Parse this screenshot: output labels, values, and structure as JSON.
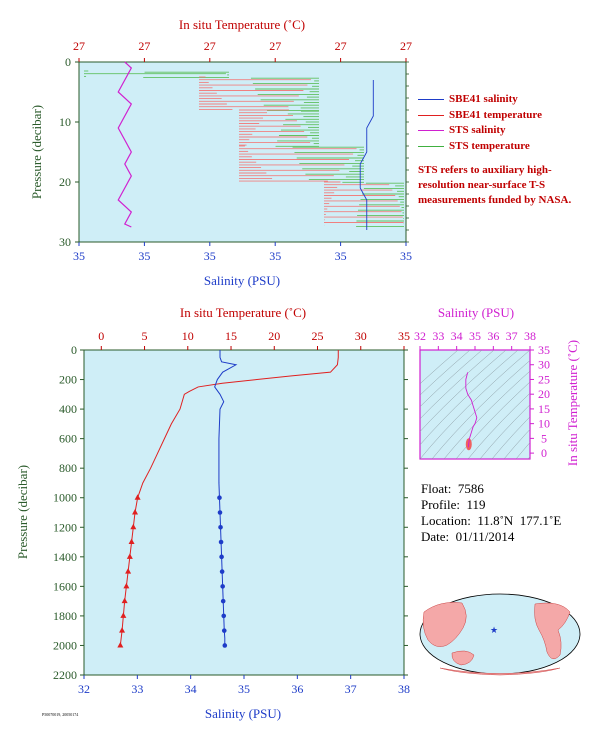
{
  "meta_caption": "P50070019, 20050174",
  "top_panel": {
    "top_axis_label": "In situ Temperature (˚C)",
    "bottom_axis_label": "Salinity (PSU)",
    "y_axis_label": "Pressure (decibar)",
    "top_ticks": [
      "27",
      "27",
      "27",
      "27",
      "27",
      "27"
    ],
    "bottom_ticks": [
      "35",
      "35",
      "35",
      "35",
      "35",
      "35"
    ],
    "y_ticks": [
      "0",
      "10",
      "20",
      "30"
    ]
  },
  "legend": {
    "items": [
      {
        "label": "SBE41 salinity",
        "color": "#1e3cc8"
      },
      {
        "label": "SBE41 temperature",
        "color": "#e02020"
      },
      {
        "label": "STS salinity",
        "color": "#d020d0"
      },
      {
        "label": "STS temperature",
        "color": "#40b040"
      }
    ],
    "note": "STS refers to auxiliary high-resolution near-surface T-S measurements funded by NASA."
  },
  "bottom_panel": {
    "top_axis_label": "In situ Temperature (˚C)",
    "bottom_axis_label": "Salinity (PSU)",
    "y_axis_label": "Pressure (decibar)"
  },
  "ts_panel": {
    "top_axis_label": "Salinity (PSU)",
    "right_axis_label": "In situ Temperature (˚C)"
  },
  "float_info": {
    "float": "Float:  7586",
    "profile": "Profile:  119",
    "location": "Location:  11.8˚N  177.1˚E",
    "date": "Date:  01/11/2014"
  },
  "colors": {
    "panel_bg": "#cfeef7",
    "temperature": "#e02020",
    "salinity": "#1e3cc8",
    "sts_salinity": "#d020d0",
    "sts_temperature": "#40b040",
    "axis_green": "#2a5a2a"
  },
  "chart_data": [
    {
      "type": "line",
      "panel": "top",
      "title": "",
      "xlabel_top": "In situ Temperature (˚C)",
      "xlabel_bottom": "Salinity (PSU)",
      "ylabel": "Pressure (decibar)",
      "ylim": [
        30,
        0
      ],
      "series": [
        {
          "name": "SBE41 salinity",
          "x": [
            35.3,
            35.3,
            35.3,
            35.3,
            35.29,
            35.29,
            35.29,
            35.28,
            35.28,
            35.28,
            35.29,
            35.29,
            35.29,
            35.29
          ],
          "y": [
            3,
            5,
            7,
            9,
            11,
            13,
            15,
            17,
            19,
            21,
            23,
            25,
            27,
            28
          ]
        },
        {
          "name": "STS salinity",
          "x": [
            34.92,
            34.93,
            34.92,
            34.91,
            34.93,
            34.92,
            34.91,
            34.92,
            34.93,
            34.92,
            34.93,
            34.92,
            34.91,
            34.93,
            34.92,
            34.93
          ],
          "y": [
            0,
            1,
            3,
            5,
            7,
            9,
            11,
            13,
            15,
            17,
            19,
            21,
            23,
            25,
            27,
            27.5
          ]
        }
      ]
    },
    {
      "type": "line",
      "panel": "bottom",
      "title": "",
      "xlabel_top": "In situ Temperature (˚C)",
      "xlabel_bottom": "Salinity (PSU)",
      "ylabel": "Pressure (decibar)",
      "x_top_ticks": [
        "0",
        "5",
        "10",
        "15",
        "20",
        "25",
        "30",
        "35"
      ],
      "x_bottom_ticks": [
        "32",
        "33",
        "34",
        "35",
        "36",
        "37",
        "38"
      ],
      "y_ticks": [
        "0",
        "200",
        "400",
        "600",
        "800",
        "1000",
        "1200",
        "1400",
        "1600",
        "1800",
        "2000",
        "2200"
      ],
      "xlim_temperature": [
        -2,
        35
      ],
      "xlim_salinity": [
        32,
        38
      ],
      "ylim": [
        2200,
        0
      ],
      "series": [
        {
          "name": "temperature",
          "x": [
            27.4,
            27.4,
            27.3,
            26.5,
            22,
            18,
            14,
            11.2,
            10.2,
            9.6,
            9.1,
            8.1,
            7.3,
            6.5,
            5.7,
            4.8,
            4.2,
            3.9,
            3.7,
            3.5,
            3.3,
            3.1,
            2.9,
            2.7,
            2.55,
            2.4,
            2.3,
            2.2
          ],
          "y": [
            0,
            50,
            100,
            150,
            175,
            200,
            225,
            250,
            280,
            300,
            400,
            500,
            600,
            700,
            800,
            900,
            1000,
            1100,
            1200,
            1300,
            1400,
            1500,
            1600,
            1700,
            1800,
            1900,
            1950,
            2000
          ]
        },
        {
          "name": "salinity",
          "x": [
            34.55,
            34.55,
            34.58,
            34.85,
            34.6,
            34.5,
            34.45,
            34.55,
            34.62,
            34.55,
            34.54,
            34.53,
            34.53,
            34.53,
            34.53,
            34.54,
            34.55,
            34.56,
            34.57,
            34.58,
            34.59,
            34.6,
            34.61,
            34.62,
            34.63,
            34.64,
            34.64
          ],
          "y": [
            0,
            50,
            80,
            100,
            150,
            200,
            250,
            300,
            350,
            400,
            500,
            600,
            700,
            800,
            900,
            1000,
            1100,
            1200,
            1300,
            1400,
            1500,
            1600,
            1700,
            1800,
            1900,
            1950,
            2000
          ]
        }
      ]
    },
    {
      "type": "line",
      "panel": "ts",
      "title": "",
      "x_top_ticks": [
        "32",
        "33",
        "34",
        "35",
        "36",
        "37",
        "38"
      ],
      "y_right_ticks": [
        "0",
        "5",
        "10",
        "15",
        "20",
        "25",
        "30",
        "35"
      ],
      "xlim": [
        32,
        38
      ],
      "ylim": [
        -2,
        35
      ],
      "series": [
        {
          "x": [
            34.6,
            34.5,
            34.5,
            34.6,
            34.8,
            34.9,
            35.0,
            35.1,
            35.0,
            34.9,
            34.85,
            34.8,
            34.75,
            34.7,
            34.65,
            34.64
          ],
          "y": [
            27.4,
            25,
            22,
            20,
            18,
            16,
            14,
            12,
            10,
            9,
            8,
            7,
            6,
            5,
            3,
            2
          ]
        }
      ]
    }
  ]
}
